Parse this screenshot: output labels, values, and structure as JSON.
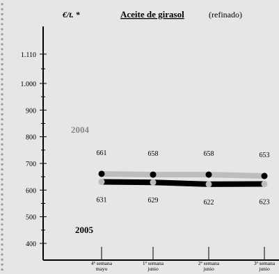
{
  "chart_data": {
    "type": "line",
    "title": "Aceite de girasol",
    "subtitle": "(refinado)",
    "ylabel": "€/t. *",
    "xlabel": "",
    "categories": [
      [
        "4ª semana",
        "mayo"
      ],
      [
        "1ª semana",
        "junio"
      ],
      [
        "2ª semana",
        "junio"
      ],
      [
        "3ª semana",
        "junio"
      ]
    ],
    "yticks": [
      400,
      500,
      600,
      700,
      800,
      900,
      "1.000",
      "1.110"
    ],
    "ylim": [
      350,
      1150
    ],
    "grid": false,
    "series": [
      {
        "name": "2004",
        "values": [
          661,
          658,
          658,
          653
        ],
        "color": "#bdbdbd",
        "marker_color": "#000000",
        "labels_position": "above"
      },
      {
        "name": "2005",
        "values": [
          631,
          629,
          622,
          623
        ],
        "color": "#000000",
        "marker_color": "#bdbdbd",
        "labels_position": "below"
      }
    ],
    "series_label_colors": {
      "2004": "#8a8a8a",
      "2005": "#000000"
    }
  }
}
